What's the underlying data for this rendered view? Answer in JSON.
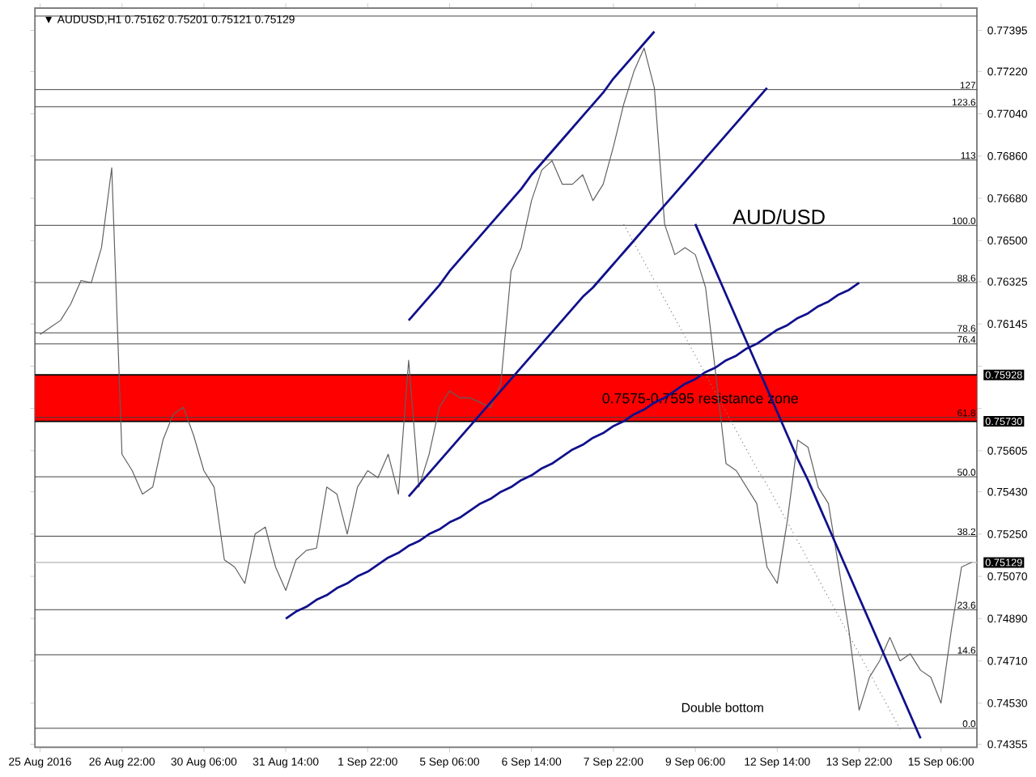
{
  "chart_data": {
    "type": "line",
    "title": "▼ AUDUSD,H1  0.75162 0.75201 0.75121 0.75129",
    "categories": [
      "25 Aug 2016",
      null,
      null,
      null,
      null,
      null,
      null,
      null,
      "26 Aug 22:00",
      null,
      null,
      null,
      null,
      null,
      null,
      null,
      "30 Aug 06:00",
      null,
      null,
      null,
      null,
      null,
      null,
      null,
      "31 Aug 14:00",
      null,
      null,
      null,
      null,
      null,
      null,
      null,
      "1 Sep 22:00",
      null,
      null,
      null,
      null,
      null,
      null,
      null,
      "5 Sep 06:00",
      null,
      null,
      null,
      null,
      null,
      null,
      null,
      "6 Sep 14:00",
      null,
      null,
      null,
      null,
      null,
      null,
      null,
      "7 Sep 22:00",
      null,
      null,
      null,
      null,
      null,
      null,
      null,
      "9 Sep 06:00",
      null,
      null,
      null,
      null,
      null,
      null,
      null,
      "12 Sep 14:00",
      null,
      null,
      null,
      null,
      null,
      null,
      null,
      "13 Sep 22:00",
      null,
      null,
      null,
      null,
      null,
      null,
      null,
      "15 Sep 06:00",
      null,
      null,
      null
    ],
    "series": [
      {
        "color": "#606060",
        "values": [
          0.761,
          0.7613,
          0.7616,
          0.7623,
          0.7633,
          0.7632,
          0.7647,
          0.7681,
          0.7559,
          0.7552,
          0.7542,
          0.7545,
          0.7565,
          0.7576,
          0.7579,
          0.7567,
          0.7552,
          0.7545,
          0.7514,
          0.7511,
          0.7504,
          0.7525,
          0.7528,
          0.7511,
          0.7501,
          0.7514,
          0.7518,
          0.7519,
          0.7545,
          0.7542,
          0.7525,
          0.7545,
          0.7552,
          0.7549,
          0.7559,
          0.7542,
          0.7599,
          0.7545,
          0.7559,
          0.7579,
          0.7586,
          0.7583,
          0.7583,
          0.7581,
          0.7579,
          0.7589,
          0.7637,
          0.7647,
          0.7667,
          0.768,
          0.7684,
          0.7674,
          0.7674,
          0.7678,
          0.7667,
          0.7674,
          0.769,
          0.7708,
          0.7722,
          0.7732,
          0.7715,
          0.7657,
          0.7644,
          0.7647,
          0.7644,
          0.763,
          0.7593,
          0.7555,
          0.7552,
          0.7545,
          0.7538,
          0.7511,
          0.7504,
          0.7531,
          0.7565,
          0.7562,
          0.7545,
          0.7538,
          0.7511,
          0.7484,
          0.745,
          0.7464,
          0.7471,
          0.7481,
          0.7471,
          0.7474,
          0.7467,
          0.7464,
          0.7453,
          0.7484,
          0.7511,
          0.7513
        ]
      },
      {
        "color": "#10108c",
        "values": [
          null,
          null,
          null,
          null,
          null,
          null,
          null,
          null,
          null,
          null,
          null,
          null,
          null,
          null,
          null,
          null,
          null,
          null,
          null,
          null,
          null,
          null,
          null,
          null,
          0.7489,
          0.7492,
          0.7494,
          0.7497,
          0.7499,
          0.7502,
          0.7504,
          0.7507,
          0.7509,
          0.7512,
          0.7515,
          0.7517,
          0.752,
          0.7522,
          0.7525,
          0.7527,
          0.753,
          0.7532,
          0.7535,
          0.7538,
          0.754,
          0.7543,
          0.7545,
          0.7548,
          0.755,
          0.7553,
          0.7555,
          0.7558,
          0.7561,
          0.7563,
          0.7566,
          0.7568,
          0.7571,
          0.7573,
          0.7576,
          0.7578,
          0.7581,
          0.7583,
          0.7586,
          0.7589,
          0.7591,
          0.7594,
          0.7596,
          0.7599,
          0.7601,
          0.7604,
          0.7606,
          0.7609,
          0.7612,
          0.7614,
          0.7617,
          0.7619,
          0.7622,
          0.7624,
          0.7627,
          0.7629,
          0.7632,
          null,
          null,
          null,
          null,
          null,
          null,
          null,
          null,
          null,
          null,
          null
        ]
      },
      {
        "color": "#10108c",
        "values": [
          null,
          null,
          null,
          null,
          null,
          null,
          null,
          null,
          null,
          null,
          null,
          null,
          null,
          null,
          null,
          null,
          null,
          null,
          null,
          null,
          null,
          null,
          null,
          null,
          null,
          null,
          null,
          null,
          null,
          null,
          null,
          null,
          null,
          null,
          null,
          null,
          0.7541,
          0.7546,
          0.7551,
          0.7556,
          0.7561,
          0.7566,
          0.7571,
          0.7576,
          0.7581,
          0.7586,
          0.7591,
          0.7596,
          0.7601,
          0.7606,
          0.7611,
          0.7616,
          0.7621,
          0.7626,
          0.763,
          0.7635,
          0.764,
          0.7645,
          0.765,
          0.7655,
          0.766,
          0.7665,
          0.767,
          0.7675,
          0.768,
          0.7685,
          0.769,
          0.7695,
          0.77,
          0.7705,
          0.771,
          0.7715,
          null,
          null,
          null,
          null,
          null,
          null,
          null,
          null,
          null,
          null,
          null,
          null,
          null,
          null,
          null,
          null,
          null,
          null,
          null,
          null
        ]
      },
      {
        "color": "#10108c",
        "values": [
          null,
          null,
          null,
          null,
          null,
          null,
          null,
          null,
          null,
          null,
          null,
          null,
          null,
          null,
          null,
          null,
          null,
          null,
          null,
          null,
          null,
          null,
          null,
          null,
          null,
          null,
          null,
          null,
          null,
          null,
          null,
          null,
          null,
          null,
          null,
          null,
          0.7616,
          0.7621,
          0.7626,
          0.7631,
          0.7637,
          0.7642,
          0.7647,
          0.7652,
          0.7657,
          0.7662,
          0.7667,
          0.7672,
          0.7678,
          0.7683,
          0.7688,
          0.7693,
          0.7698,
          0.7703,
          0.7708,
          0.7713,
          0.7719,
          0.7724,
          0.7729,
          0.7734,
          0.7739,
          null,
          null,
          null,
          null,
          null,
          null,
          null,
          null,
          null,
          null,
          null,
          null,
          null,
          null,
          null,
          null,
          null,
          null,
          null,
          null,
          null,
          null,
          null,
          null,
          null,
          null,
          null,
          null,
          null,
          null,
          null
        ]
      },
      {
        "color": "#10108c",
        "values": [
          null,
          null,
          null,
          null,
          null,
          null,
          null,
          null,
          null,
          null,
          null,
          null,
          null,
          null,
          null,
          null,
          null,
          null,
          null,
          null,
          null,
          null,
          null,
          null,
          null,
          null,
          null,
          null,
          null,
          null,
          null,
          null,
          null,
          null,
          null,
          null,
          null,
          null,
          null,
          null,
          null,
          null,
          null,
          null,
          null,
          null,
          null,
          null,
          null,
          null,
          null,
          null,
          null,
          null,
          null,
          null,
          null,
          null,
          null,
          null,
          null,
          null,
          null,
          null,
          0.7657,
          0.7647,
          0.7637,
          0.7627,
          0.7617,
          0.7607,
          0.7597,
          0.7587,
          0.7577,
          0.7567,
          0.7557,
          0.7548,
          0.7538,
          0.7528,
          0.7518,
          0.7508,
          0.7498,
          0.7488,
          0.7478,
          0.7468,
          0.7458,
          0.7448,
          0.7438,
          null,
          null,
          null,
          null,
          null
        ]
      },
      {
        "color": "#808080",
        "line_style": "dotted",
        "values": [
          null,
          null,
          null,
          null,
          null,
          null,
          null,
          null,
          null,
          null,
          null,
          null,
          null,
          null,
          null,
          null,
          null,
          null,
          null,
          null,
          null,
          null,
          null,
          null,
          null,
          null,
          null,
          null,
          null,
          null,
          null,
          null,
          null,
          null,
          null,
          null,
          null,
          null,
          null,
          null,
          null,
          null,
          null,
          null,
          null,
          null,
          null,
          null,
          null,
          null,
          null,
          null,
          null,
          null,
          null,
          null,
          null,
          0.7657,
          0.7649,
          0.7641,
          0.7633,
          0.7625,
          0.7617,
          0.7609,
          0.7601,
          0.7593,
          0.7585,
          0.7577,
          0.7569,
          0.7561,
          0.7553,
          0.7546,
          0.7538,
          0.753,
          0.7522,
          0.7514,
          0.7506,
          0.7498,
          0.749,
          0.7482,
          0.7474,
          0.7466,
          0.7458,
          0.745,
          0.7442,
          null,
          null,
          null,
          null,
          null,
          null,
          null
        ]
      }
    ],
    "ylim": [
      0.74342,
      0.7749
    ],
    "yticks": [
      {
        "value": 0.77395,
        "label": "0.77395"
      },
      {
        "value": 0.7722,
        "label": "0.77220"
      },
      {
        "value": 0.7704,
        "label": "0.77040"
      },
      {
        "value": 0.7686,
        "label": "0.76860"
      },
      {
        "value": 0.7668,
        "label": "0.76680"
      },
      {
        "value": 0.765,
        "label": "0.76500"
      },
      {
        "value": 0.76325,
        "label": "0.76325"
      },
      {
        "value": 0.76145,
        "label": "0.76145"
      },
      {
        "value": 0.75965,
        "label": null
      },
      {
        "value": 0.75785,
        "label": null
      },
      {
        "value": 0.75605,
        "label": "0.75605"
      },
      {
        "value": 0.7543,
        "label": "0.75430"
      },
      {
        "value": 0.7525,
        "label": "0.75250"
      },
      {
        "value": 0.7507,
        "label": "0.75070"
      },
      {
        "value": 0.7489,
        "label": "0.74890"
      },
      {
        "value": 0.7471,
        "label": "0.74710"
      },
      {
        "value": 0.7453,
        "label": "0.74530"
      },
      {
        "value": 0.74355,
        "label": "0.74355"
      }
    ],
    "bands": [
      {
        "axis": "y",
        "from": 0.7573,
        "to": 0.75928,
        "label": "0.7575-0.7595 resistance zone",
        "color": "#ff0000"
      }
    ],
    "ref_lines": [
      {
        "axis": "y",
        "value": 0.75928,
        "label": "0.75928",
        "color": "#000000"
      },
      {
        "axis": "y",
        "value": 0.7573,
        "label": "0.75730",
        "color": "#000000"
      },
      {
        "axis": "y",
        "value": 0.75129,
        "label": "0.75129",
        "color": "#c8c8c8"
      },
      {
        "axis": "y",
        "value": 0.77456
      },
      {
        "axis": "y",
        "value": 0.77143
      },
      {
        "axis": "y",
        "value": 0.7707
      },
      {
        "axis": "y",
        "value": 0.76843
      },
      {
        "axis": "y",
        "value": 0.76565
      },
      {
        "axis": "y",
        "value": 0.76321
      },
      {
        "axis": "y",
        "value": 0.76107
      },
      {
        "axis": "y",
        "value": 0.7606
      },
      {
        "axis": "y",
        "value": 0.75747
      },
      {
        "axis": "y",
        "value": 0.75494
      },
      {
        "axis": "y",
        "value": 0.75241
      },
      {
        "axis": "y",
        "value": 0.74928
      },
      {
        "axis": "y",
        "value": 0.74736
      },
      {
        "axis": "y",
        "value": 0.74423
      }
    ],
    "annotations": [
      "AUD/USD",
      "Double bottom",
      {
        "text": "127",
        "y": 0.77143
      },
      {
        "text": "123.6",
        "y": 0.7707
      },
      {
        "text": "113",
        "y": 0.76843
      },
      {
        "text": "100.0",
        "y": 0.76565
      },
      {
        "text": "88.6",
        "y": 0.76321
      },
      {
        "text": "78.6",
        "y": 0.76107
      },
      {
        "text": "76.4",
        "y": 0.7606
      },
      {
        "text": "61.8",
        "y": 0.75747
      },
      {
        "text": "50.0",
        "y": 0.75494
      },
      {
        "text": "38.2",
        "y": 0.75241
      },
      {
        "text": "23.6",
        "y": 0.74928
      },
      {
        "text": "14.6",
        "y": 0.74736
      },
      {
        "text": "0.0",
        "y": 0.74423
      }
    ],
    "grid": false,
    "marker": "none"
  }
}
